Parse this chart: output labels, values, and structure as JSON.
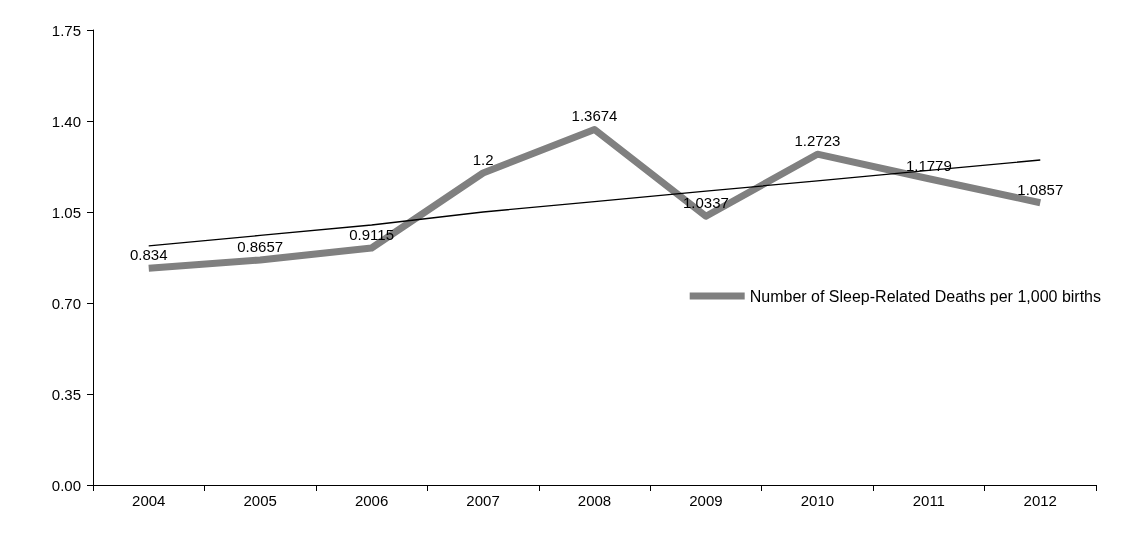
{
  "chart_data": {
    "type": "line",
    "categories": [
      "2004",
      "2005",
      "2006",
      "2007",
      "2008",
      "2009",
      "2010",
      "2011",
      "2012"
    ],
    "series": [
      {
        "name": "Number of Sleep-Related Deaths per 1,000 births",
        "color": "#808080",
        "values": [
          0.834,
          0.8657,
          0.9115,
          1.2,
          1.3674,
          1.0337,
          1.2723,
          1.1779,
          1.0857
        ],
        "value_labels": [
          "0.834",
          "0.8657",
          "0.9115",
          "1.2",
          "1.3674",
          "1.0337",
          "1.2723",
          "1.1779",
          "1.0857"
        ]
      },
      {
        "type": "line",
        "color": "#000000",
        "values": [
          0.92,
          0.96,
          1.0,
          1.05,
          1.09,
          1.13,
          1.17,
          1.21,
          1.25
        ]
      }
    ],
    "ylim": [
      0,
      1.75
    ],
    "yticks": [
      {
        "value": 0,
        "label": "0.00"
      },
      {
        "value": 0.35,
        "label": "0.35"
      },
      {
        "value": 0.7,
        "label": "0.70"
      },
      {
        "value": 1.05,
        "label": "1.05"
      },
      {
        "value": 1.4,
        "label": "1.40"
      },
      {
        "value": 1.75,
        "label": "1.75"
      }
    ],
    "grid": false,
    "legend": "right",
    "marker": "none"
  }
}
